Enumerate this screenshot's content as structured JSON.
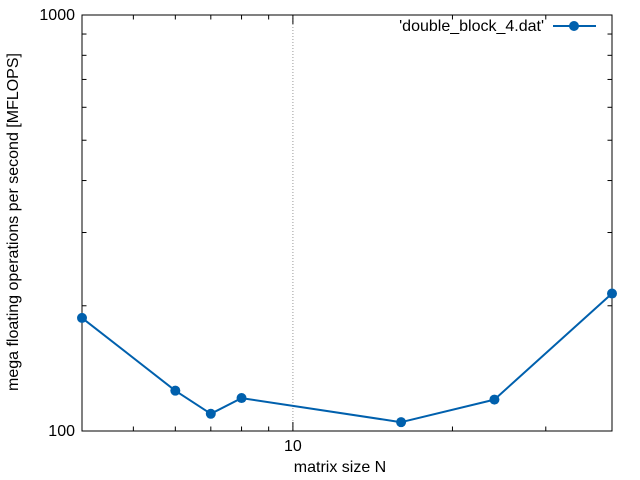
{
  "chart_data": {
    "type": "line",
    "xlabel": "matrix size N",
    "ylabel": "mega floating operations per second [MFLOPS]",
    "x_scale": "log",
    "y_scale": "log",
    "xlim": [
      4,
      40
    ],
    "ylim": [
      100,
      1000
    ],
    "x_tick_labels": [
      {
        "value": 10,
        "label": "10"
      }
    ],
    "y_tick_labels": [
      {
        "value": 100,
        "label": "100"
      },
      {
        "value": 1000,
        "label": "1000"
      }
    ],
    "grid": "vertical dotted line at major x tick",
    "legend_position": "top-right",
    "series": [
      {
        "name": "'double_block_4.dat'",
        "color": "#0060ad",
        "marker": "circle",
        "x": [
          4,
          6,
          7,
          8,
          16,
          24,
          40
        ],
        "y": [
          187,
          125,
          110,
          120,
          105,
          119,
          214
        ]
      }
    ]
  }
}
